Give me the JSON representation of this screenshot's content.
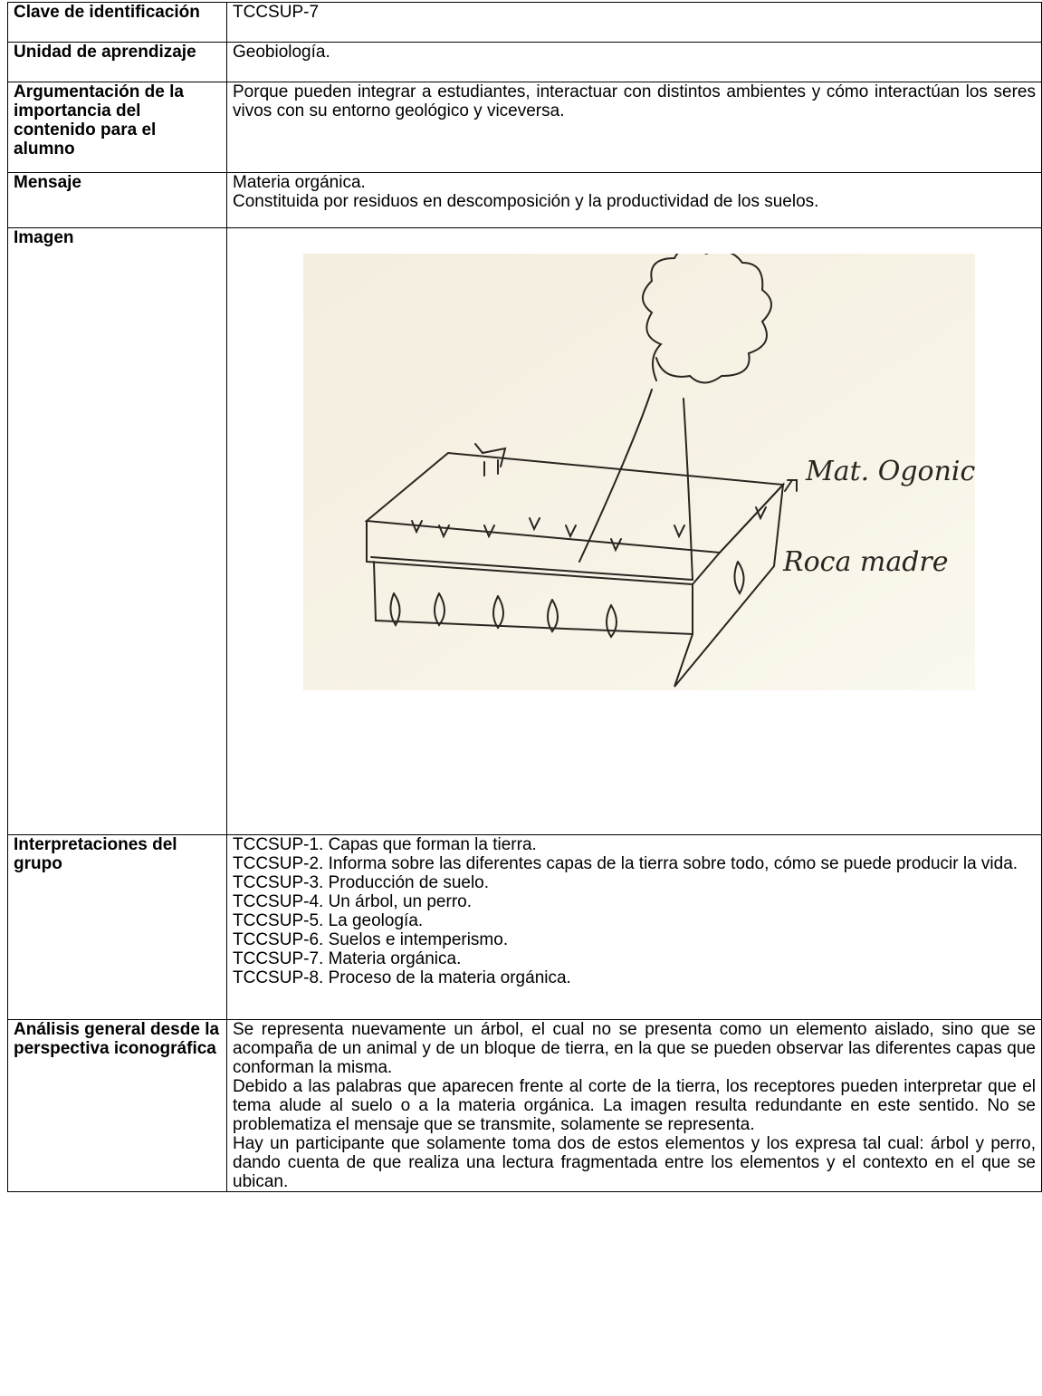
{
  "table": {
    "rows": [
      {
        "label": "Clave de identificación",
        "content": [
          "TCCSUP-7"
        ]
      },
      {
        "label": "Unidad de aprendizaje",
        "content": [
          "Geobiología."
        ]
      },
      {
        "label": "Argumentación de la importancia del contenido para el alumno",
        "content": [
          "Porque pueden integrar a estudiantes, interactuar con distintos ambientes y cómo interactúan los seres vivos con su entorno geológico y viceversa."
        ]
      },
      {
        "label": "Mensaje",
        "content": [
          "Materia orgánica.",
          "Constituida por residuos en descomposición y la productividad de los suelos."
        ]
      },
      {
        "label": "Imagen",
        "annotations": [
          "Mat. Ogonico",
          "Roca madre"
        ]
      },
      {
        "label": "Interpretaciones del grupo",
        "content": [
          "TCCSUP-1. Capas que forman la tierra.",
          "TCCSUP-2. Informa sobre las diferentes capas de la tierra sobre todo, cómo se puede producir la vida.",
          "TCCSUP-3. Producción de suelo.",
          "TCCSUP-4.  Un árbol, un perro.",
          "TCCSUP-5.  La geología.",
          "TCCSUP-6. Suelos e intemperismo.",
          "TCCSUP-7. Materia orgánica.",
          "TCCSUP-8. Proceso de la materia orgánica."
        ]
      },
      {
        "label": "Análisis general desde la perspectiva iconográfica",
        "content": [
          "Se representa nuevamente un árbol, el cual no se presenta como un elemento aislado, sino que se acompaña de un animal y de un bloque de tierra, en la que se pueden observar las diferentes capas que conforman la misma.",
          "Debido a las palabras que aparecen frente al corte de la  tierra, los receptores pueden interpretar que el tema alude al suelo o a la materia orgánica. La imagen resulta redundante en este sentido. No se problematiza el mensaje que se transmite, solamente se representa.",
          "Hay un participante que solamente toma dos de estos elementos y los expresa tal cual: árbol y perro, dando cuenta de que realiza una lectura fragmentada entre los elementos y el contexto en el que se ubican."
        ]
      }
    ]
  }
}
